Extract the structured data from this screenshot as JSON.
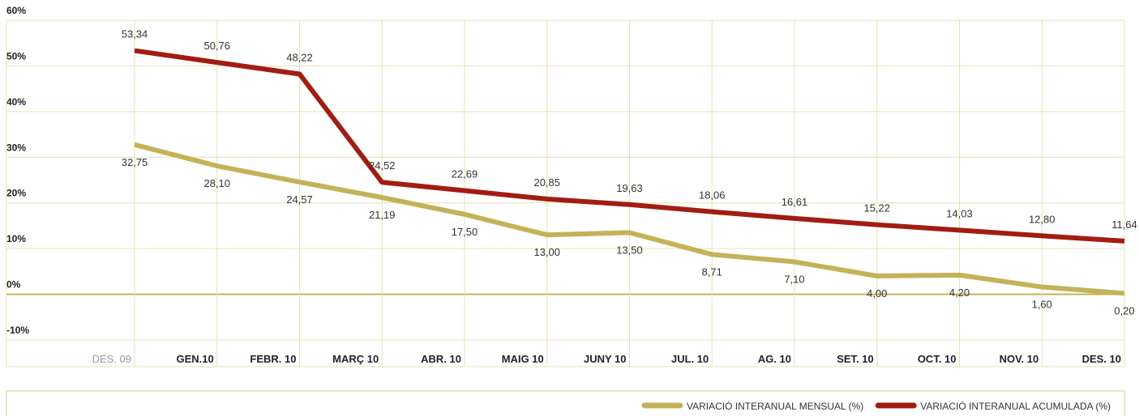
{
  "chart_data": {
    "type": "line",
    "categories": [
      "DES. 09",
      "GEN.10",
      "FEBR. 10",
      "MARÇ 10",
      "ABR. 10",
      "MAIG 10",
      "JUNY 10",
      "JUL. 10",
      "AG. 10",
      "SET. 10",
      "OCT. 10",
      "NOV. 10",
      "DES. 10"
    ],
    "series": [
      {
        "name": "VARIACIÓ INTERANUAL MENSUAL (%)",
        "color": "#c4b259",
        "values": [
          32.75,
          28.1,
          24.57,
          21.19,
          17.5,
          13.0,
          13.5,
          8.71,
          7.1,
          4.0,
          4.2,
          1.6,
          0.2
        ],
        "value_labels": [
          "32,75",
          "28,10",
          "24,57",
          "21,19",
          "17,50",
          "13,00",
          "13,50",
          "8,71",
          "7,10",
          "4,00",
          "4,20",
          "1,60",
          "0,20"
        ]
      },
      {
        "name": "VARIACIÓ INTERANUAL ACUMULADA (%)",
        "color": "#a11d12",
        "values": [
          53.34,
          50.76,
          48.22,
          24.52,
          22.69,
          20.85,
          19.63,
          18.06,
          16.61,
          15.22,
          14.03,
          12.8,
          11.64
        ],
        "value_labels": [
          "53,34",
          "50,76",
          "48,22",
          "24,52",
          "22,69",
          "20,85",
          "19,63",
          "18,06",
          "16,61",
          "15,22",
          "14,03",
          "12,80",
          "11,64"
        ]
      }
    ],
    "ylim": [
      -10,
      60
    ],
    "yticks": [
      {
        "value": -10,
        "label": "-10%"
      },
      {
        "value": 0,
        "label": "0%"
      },
      {
        "value": 10,
        "label": "10%"
      },
      {
        "value": 20,
        "label": "20%"
      },
      {
        "value": 30,
        "label": "30%"
      },
      {
        "value": 40,
        "label": "40%"
      },
      {
        "value": 50,
        "label": "50%"
      },
      {
        "value": 60,
        "label": "60%"
      }
    ],
    "grid": true
  }
}
